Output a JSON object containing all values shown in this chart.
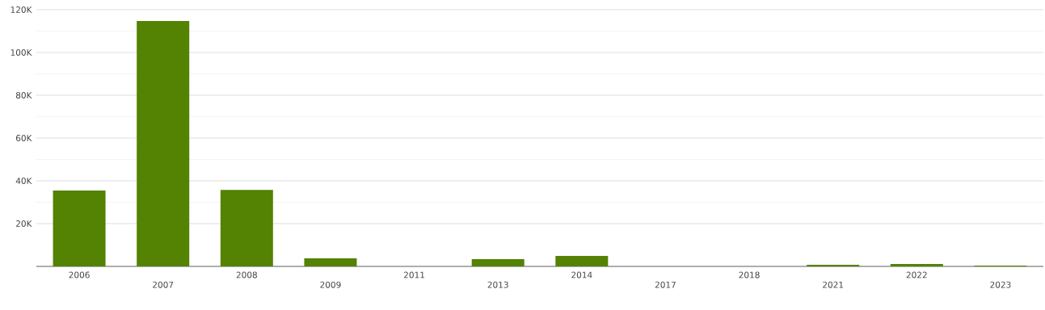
{
  "chart_data": {
    "type": "bar",
    "categories": [
      "2006",
      "2007",
      "2008",
      "2009",
      "2011",
      "2013",
      "2014",
      "2017",
      "2018",
      "2021",
      "2022",
      "2023"
    ],
    "values": [
      35500,
      114700,
      35800,
      3800,
      0,
      3400,
      4900,
      0,
      0,
      800,
      1100,
      400
    ],
    "color": "#548203",
    "ylim": [
      0,
      120000
    ],
    "yticks": [
      {
        "value": 20000,
        "label": "20K"
      },
      {
        "value": 40000,
        "label": "40K"
      },
      {
        "value": 60000,
        "label": "60K"
      },
      {
        "value": 80000,
        "label": "80K"
      },
      {
        "value": 100000,
        "label": "100K"
      },
      {
        "value": 120000,
        "label": "120K"
      }
    ],
    "grid": "y"
  }
}
